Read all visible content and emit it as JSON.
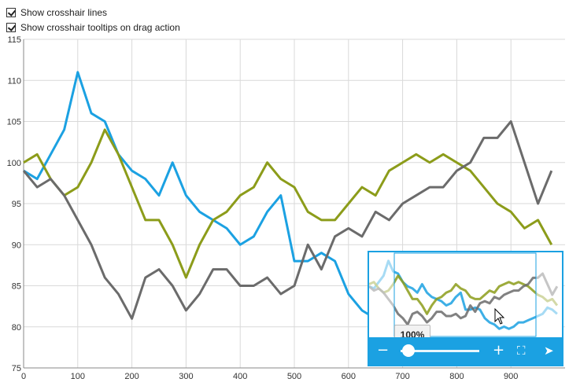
{
  "options": {
    "crosshair_lines": {
      "label": "Show crosshair lines",
      "checked": true
    },
    "crosshair_tooltips": {
      "label": "Show crosshair tooltips on drag action",
      "checked": true
    }
  },
  "navigator": {
    "zoom_label": "100%",
    "zoom_value": 0.1
  },
  "colors": {
    "accent": "#1ba1e2",
    "series1": "#1ba1e2",
    "series2": "#8c9c1a",
    "series3": "#6b6b6b",
    "grid": "#d9d9d9"
  },
  "chart_data": {
    "type": "line",
    "xlim": [
      0,
      1000
    ],
    "ylim": [
      75,
      115
    ],
    "x_ticks": [
      0,
      100,
      200,
      300,
      400,
      500,
      600,
      700,
      800,
      900
    ],
    "y_ticks": [
      75,
      80,
      85,
      90,
      95,
      100,
      105,
      110,
      115
    ],
    "grid": true,
    "x": [
      0,
      25,
      50,
      75,
      100,
      125,
      150,
      175,
      200,
      225,
      250,
      275,
      300,
      325,
      350,
      375,
      400,
      425,
      450,
      475,
      500,
      525,
      550,
      575,
      600,
      625,
      650,
      675,
      700,
      725,
      750,
      775,
      800,
      825,
      850,
      875,
      900,
      925,
      950,
      975
    ],
    "series": [
      {
        "color": "#1ba1e2",
        "values": [
          99,
          98,
          101,
          104,
          111,
          106,
          105,
          101,
          99,
          98,
          96,
          100,
          96,
          94,
          93,
          92,
          90,
          91,
          94,
          96,
          88,
          88,
          89,
          88,
          84,
          82,
          81,
          79,
          80,
          79,
          80,
          82,
          82,
          83,
          84,
          85,
          86,
          89,
          88,
          86
        ]
      },
      {
        "color": "#8c9c1a",
        "values": [
          100,
          101,
          98,
          96,
          97,
          100,
          104,
          101,
          97,
          93,
          93,
          90,
          86,
          90,
          93,
          94,
          96,
          97,
          100,
          98,
          97,
          94,
          93,
          93,
          95,
          97,
          96,
          99,
          100,
          101,
          100,
          101,
          100,
          99,
          97,
          95,
          94,
          92,
          93,
          90
        ]
      },
      {
        "color": "#6b6b6b",
        "values": [
          99,
          97,
          98,
          96,
          93,
          90,
          86,
          84,
          81,
          86,
          87,
          85,
          82,
          84,
          87,
          87,
          85,
          85,
          86,
          84,
          85,
          90,
          87,
          91,
          92,
          91,
          94,
          93,
          95,
          96,
          97,
          97,
          99,
          100,
          103,
          103,
          105,
          100,
          95,
          99
        ]
      }
    ]
  }
}
